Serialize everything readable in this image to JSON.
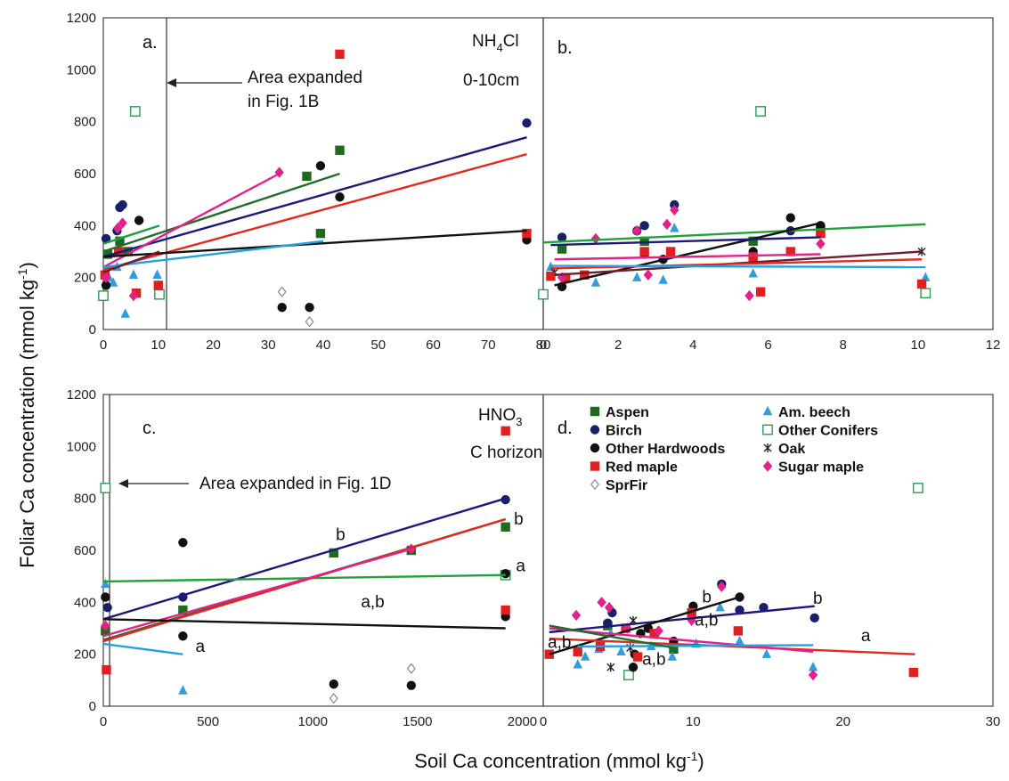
{
  "figure": {
    "y_axis_title": "Foliar Ca concentration (mmol kg",
    "y_axis_sup": "-1",
    "y_axis_close": ")",
    "x_axis_title": "Soil Ca concentration (mmol kg",
    "x_axis_sup": "-1",
    "x_axis_close": ")"
  },
  "species": [
    {
      "name": "Aspen",
      "color": "#1e6b1e",
      "marker": "square-filled"
    },
    {
      "name": "Am. beech",
      "color": "#2f9de0",
      "marker": "triangle"
    },
    {
      "name": "Birch",
      "color": "#1a1f6b",
      "marker": "circle"
    },
    {
      "name": "Other Conifers",
      "color": "#2a9d50",
      "marker": "square-open"
    },
    {
      "name": "Other Hardwoods",
      "color": "#111111",
      "marker": "circle"
    },
    {
      "name": "Oak",
      "color": "#222222",
      "marker": "asterisk"
    },
    {
      "name": "Red maple",
      "color": "#e02020",
      "marker": "square-filled"
    },
    {
      "name": "Sugar maple",
      "color": "#e0228a",
      "marker": "diamond"
    },
    {
      "name": "SprFir",
      "color": "#888888",
      "marker": "diamond-open"
    }
  ],
  "line_colors": {
    "Aspen": "#1f6e28",
    "Am. beech": "#22a0e0",
    "Birch": "#1a1a7a",
    "Other Conifers": "#22a03a",
    "Other Hardwoods": "#111111",
    "Oak": "#6b1e2e",
    "Red maple": "#e02a20",
    "Sugar maple": "#e0228a"
  },
  "chart_data": [
    {
      "panel": "a.",
      "type": "scatter",
      "annotation_top": "NH",
      "annotation_sub": "4",
      "annotation_tail": "Cl",
      "annotation_depth": "0-10cm",
      "arrow_text_line1": "Area expanded",
      "arrow_text_line2": "in Fig. 1B",
      "xlim": [
        0,
        80
      ],
      "ylim": [
        0,
        1200
      ],
      "xticks": [
        "0",
        "10",
        "20",
        "30",
        "40",
        "50",
        "60",
        "70",
        "80"
      ],
      "yticks": [
        "0",
        "200",
        "400",
        "600",
        "800",
        "1000",
        "1200"
      ],
      "expanded_area_x": 11.5,
      "points": [
        {
          "s": "Aspen",
          "x": [
            0.8,
            3,
            4.5,
            37,
            39.5,
            43
          ],
          "y": [
            290,
            340,
            300,
            590,
            370,
            690
          ]
        },
        {
          "s": "Am. beech",
          "x": [
            1,
            2.5,
            4,
            5.5,
            9.8,
            1.8
          ],
          "y": [
            200,
            240,
            60,
            210,
            210,
            180
          ]
        },
        {
          "s": "Birch",
          "x": [
            0.5,
            2.5,
            3,
            3.5,
            77
          ],
          "y": [
            350,
            380,
            470,
            480,
            795
          ]
        },
        {
          "s": "Other Conifers",
          "x": [
            0,
            5.8,
            10.2
          ],
          "y": [
            130,
            840,
            135
          ]
        },
        {
          "s": "Other Hardwoods",
          "x": [
            0.5,
            6.5,
            32.5,
            37.5,
            39.5,
            43,
            77
          ],
          "y": [
            170,
            420,
            85,
            85,
            630,
            510,
            345
          ]
        },
        {
          "s": "Red maple",
          "x": [
            0.3,
            2.8,
            6,
            10,
            43,
            77
          ],
          "y": [
            210,
            300,
            140,
            170,
            1060,
            370
          ]
        },
        {
          "s": "Sugar maple",
          "x": [
            0.5,
            2.6,
            3.5,
            5.5,
            32
          ],
          "y": [
            200,
            390,
            410,
            130,
            605
          ]
        },
        {
          "s": "SprFir",
          "x": [
            32.5,
            37.5
          ],
          "y": [
            145,
            30
          ]
        }
      ],
      "fits": [
        {
          "s": "Birch",
          "x": [
            0,
            77
          ],
          "y": [
            280,
            740
          ]
        },
        {
          "s": "Red maple",
          "x": [
            0,
            77
          ],
          "y": [
            230,
            675
          ]
        },
        {
          "s": "Aspen",
          "x": [
            0,
            43
          ],
          "y": [
            300,
            600
          ]
        },
        {
          "s": "Sugar maple",
          "x": [
            0,
            32
          ],
          "y": [
            240,
            600
          ]
        },
        {
          "s": "Other Hardwoods",
          "x": [
            0,
            77
          ],
          "y": [
            280,
            380
          ]
        },
        {
          "s": "Am. beech",
          "x": [
            0,
            40
          ],
          "y": [
            240,
            340
          ]
        },
        {
          "s": "Other Conifers",
          "x": [
            0,
            10.2
          ],
          "y": [
            330,
            400
          ]
        },
        {
          "s": "Oak",
          "x": [
            0,
            10.2
          ],
          "y": [
            220,
            300
          ]
        }
      ]
    },
    {
      "panel": "b.",
      "type": "scatter",
      "xlim": [
        0,
        12
      ],
      "ylim": [
        0,
        1200
      ],
      "xticks": [
        "0",
        "2",
        "4",
        "6",
        "8",
        "10",
        "12"
      ],
      "points": [
        {
          "s": "Aspen",
          "x": [
            0.5,
            2.7,
            5.6,
            7.4
          ],
          "y": [
            310,
            340,
            340,
            380
          ]
        },
        {
          "s": "Am. beech",
          "x": [
            0.2,
            1.4,
            2.5,
            3.2,
            3.5,
            5.6,
            10.2
          ],
          "y": [
            240,
            180,
            200,
            190,
            390,
            215,
            200
          ]
        },
        {
          "s": "Birch",
          "x": [
            0.5,
            2.5,
            2.7,
            3.5,
            6.6,
            7.4
          ],
          "y": [
            355,
            380,
            400,
            480,
            380,
            390
          ]
        },
        {
          "s": "Other Conifers",
          "x": [
            0,
            5.8,
            10.2
          ],
          "y": [
            135,
            840,
            140
          ]
        },
        {
          "s": "Other Hardwoods",
          "x": [
            0.5,
            2.7,
            3.2,
            5.6,
            6.6,
            7.4
          ],
          "y": [
            165,
            290,
            270,
            300,
            430,
            400
          ]
        },
        {
          "s": "Oak",
          "x": [
            0.3,
            10.1
          ],
          "y": [
            220,
            300
          ]
        },
        {
          "s": "Red maple",
          "x": [
            0.2,
            0.6,
            1.1,
            2.7,
            3.4,
            5.6,
            5.8,
            6.6,
            7.4,
            10.1
          ],
          "y": [
            205,
            200,
            210,
            300,
            300,
            280,
            145,
            300,
            370,
            175
          ]
        },
        {
          "s": "Sugar maple",
          "x": [
            0.5,
            1.4,
            2.5,
            2.8,
            3.3,
            3.5,
            5.5,
            7.4
          ],
          "y": [
            200,
            350,
            380,
            210,
            405,
            460,
            130,
            330
          ]
        }
      ],
      "fits": [
        {
          "s": "Other Conifers",
          "x": [
            0,
            10.2
          ],
          "y": [
            335,
            405
          ]
        },
        {
          "s": "Other Hardwoods",
          "x": [
            0.3,
            7.4
          ],
          "y": [
            170,
            410
          ]
        },
        {
          "s": "Birch",
          "x": [
            0.2,
            7.4
          ],
          "y": [
            325,
            355
          ]
        },
        {
          "s": "Oak",
          "x": [
            0.3,
            10.1
          ],
          "y": [
            210,
            300
          ]
        },
        {
          "s": "Sugar maple",
          "x": [
            0.3,
            7.4
          ],
          "y": [
            270,
            290
          ]
        },
        {
          "s": "Red maple",
          "x": [
            0.2,
            10.1
          ],
          "y": [
            235,
            270
          ]
        },
        {
          "s": "Am. beech",
          "x": [
            0.2,
            10.2
          ],
          "y": [
            245,
            240
          ]
        }
      ]
    },
    {
      "panel": "c.",
      "type": "scatter",
      "annotation_top": "HNO",
      "annotation_sub": "3",
      "annotation_depth": "C horizon",
      "arrow_text_line1": "Area expanded in Fig. 1D",
      "xlim": [
        0,
        2100
      ],
      "ylim": [
        0,
        1200
      ],
      "xticks": [
        "0",
        "500",
        "1000",
        "1500",
        "2000"
      ],
      "yticks": [
        "0",
        "200",
        "400",
        "600",
        "800",
        "1000",
        "1200"
      ],
      "expanded_area_x": 30,
      "points": [
        {
          "s": "Aspen",
          "x": [
            10,
            380,
            1100,
            1470,
            1920
          ],
          "y": [
            290,
            370,
            590,
            600,
            690
          ]
        },
        {
          "s": "Am. beech",
          "x": [
            10,
            380
          ],
          "y": [
            470,
            60
          ]
        },
        {
          "s": "Birch",
          "x": [
            20,
            380,
            1920
          ],
          "y": [
            380,
            420,
            795
          ]
        },
        {
          "s": "Other Conifers",
          "x": [
            10,
            1920
          ],
          "y": [
            840,
            505
          ]
        },
        {
          "s": "Other Hardwoods",
          "x": [
            10,
            380,
            380,
            1100,
            1470,
            1920,
            1920
          ],
          "y": [
            420,
            630,
            270,
            85,
            80,
            510,
            345
          ]
        },
        {
          "s": "Red maple",
          "x": [
            15,
            1920,
            1920
          ],
          "y": [
            140,
            1060,
            370
          ]
        },
        {
          "s": "Sugar maple",
          "x": [
            10,
            1470
          ],
          "y": [
            310,
            605
          ]
        },
        {
          "s": "SprFir",
          "x": [
            1100,
            1470
          ],
          "y": [
            30,
            145
          ]
        }
      ],
      "fits": [
        {
          "s": "Birch",
          "x": [
            0,
            1920
          ],
          "y": [
            335,
            800
          ]
        },
        {
          "s": "Other Conifers",
          "x": [
            0,
            1920
          ],
          "y": [
            480,
            505
          ]
        },
        {
          "s": "Aspen",
          "x": [
            0,
            1920
          ],
          "y": [
            255,
            720
          ]
        },
        {
          "s": "Red maple",
          "x": [
            0,
            1920
          ],
          "y": [
            250,
            720
          ]
        },
        {
          "s": "Sugar maple",
          "x": [
            0,
            1470
          ],
          "y": [
            270,
            605
          ]
        },
        {
          "s": "Other Hardwoods",
          "x": [
            0,
            1920
          ],
          "y": [
            335,
            300
          ]
        },
        {
          "s": "Am. beech",
          "x": [
            0,
            380
          ],
          "y": [
            240,
            200
          ]
        }
      ],
      "labels": [
        {
          "text": "b",
          "x": 1110,
          "y": 640
        },
        {
          "text": "b",
          "x": 1960,
          "y": 700
        },
        {
          "text": "a",
          "x": 1970,
          "y": 520
        },
        {
          "text": "a,b",
          "x": 1230,
          "y": 380
        },
        {
          "text": "a",
          "x": 440,
          "y": 210
        }
      ]
    },
    {
      "panel": "d.",
      "type": "scatter",
      "xlim": [
        0,
        30
      ],
      "ylim": [
        0,
        1200
      ],
      "xticks": [
        "0",
        "10",
        "20",
        "30"
      ],
      "legend_placement": "top-left",
      "points": [
        {
          "s": "Aspen",
          "x": [
            4.3,
            8.7
          ],
          "y": [
            310,
            220
          ]
        },
        {
          "s": "Am. beech",
          "x": [
            2.3,
            2.8,
            3.7,
            4.5,
            5.2,
            7.2,
            8.6,
            10.2,
            11.8,
            13.1,
            14.9,
            18.0
          ],
          "y": [
            160,
            190,
            220,
            280,
            210,
            230,
            190,
            240,
            380,
            250,
            200,
            150
          ]
        },
        {
          "s": "Birch",
          "x": [
            4.3,
            4.6,
            11.9,
            13.1,
            14.7,
            18.1
          ],
          "y": [
            320,
            360,
            470,
            370,
            380,
            340
          ]
        },
        {
          "s": "Other Conifers",
          "x": [
            5.7,
            25.0
          ],
          "y": [
            120,
            840
          ]
        },
        {
          "s": "Other Hardwoods",
          "x": [
            6.0,
            6.1,
            6.5,
            7.0,
            8.7,
            10.0,
            13.1
          ],
          "y": [
            150,
            200,
            280,
            300,
            250,
            385,
            420
          ]
        },
        {
          "s": "Oak",
          "x": [
            4.5,
            5.8,
            6.0
          ],
          "y": [
            150,
            225,
            330
          ]
        },
        {
          "s": "Red maple",
          "x": [
            0.4,
            2.3,
            3.8,
            5.5,
            6.3,
            7.4,
            9.9,
            13.0,
            24.7
          ],
          "y": [
            200,
            210,
            230,
            300,
            190,
            280,
            360,
            290,
            130
          ]
        },
        {
          "s": "Sugar maple",
          "x": [
            2.2,
            3.9,
            4.4,
            5.6,
            7.7,
            9.9,
            11.9,
            18.0
          ],
          "y": [
            350,
            400,
            380,
            300,
            290,
            330,
            460,
            120
          ]
        }
      ],
      "fits": [
        {
          "s": "Birch",
          "x": [
            0.4,
            18.1
          ],
          "y": [
            285,
            385
          ]
        },
        {
          "s": "Other Hardwoods",
          "x": [
            0.4,
            13.1
          ],
          "y": [
            200,
            420
          ]
        },
        {
          "s": "Red maple",
          "x": [
            0.4,
            24.8
          ],
          "y": [
            260,
            200
          ]
        },
        {
          "s": "Sugar maple",
          "x": [
            0.4,
            18.0
          ],
          "y": [
            300,
            210
          ]
        },
        {
          "s": "Am. beech",
          "x": [
            2.3,
            18.0
          ],
          "y": [
            230,
            235
          ]
        },
        {
          "s": "Aspen",
          "x": [
            0.4,
            8.7
          ],
          "y": [
            310,
            225
          ]
        }
      ],
      "labels": [
        {
          "text": "b",
          "x": 10.6,
          "y": 400
        },
        {
          "text": "b",
          "x": 18.0,
          "y": 395
        },
        {
          "text": "a",
          "x": 21.2,
          "y": 250
        },
        {
          "text": "a,b",
          "x": 10.1,
          "y": 310
        },
        {
          "text": "a,b",
          "x": 0.3,
          "y": 225
        },
        {
          "text": "a,b",
          "x": 6.6,
          "y": 160
        }
      ]
    }
  ]
}
